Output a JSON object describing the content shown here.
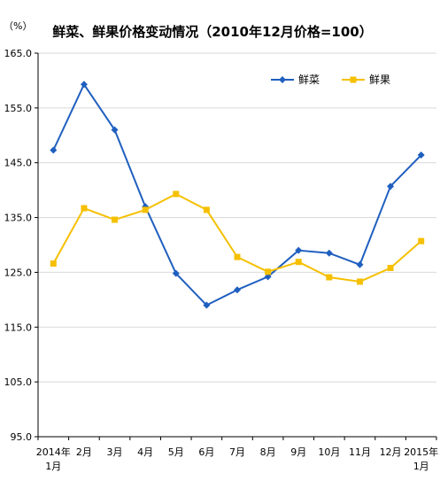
{
  "chart_data": {
    "type": "line",
    "title": "鲜菜、鲜果价格变动情况（2010年12月价格=100）",
    "unit_label": "（%）",
    "categories": [
      [
        "2014年",
        "1月"
      ],
      [
        "2月"
      ],
      [
        "3月"
      ],
      [
        "4月"
      ],
      [
        "5月"
      ],
      [
        "6月"
      ],
      [
        "7月"
      ],
      [
        "8月"
      ],
      [
        "9月"
      ],
      [
        "10月"
      ],
      [
        "11月"
      ],
      [
        "12月"
      ],
      [
        "2015年",
        "1月"
      ]
    ],
    "series": [
      {
        "name": "鲜菜",
        "color": "#1f5fbf",
        "marker": "diamond",
        "values": [
          147.3,
          159.3,
          151.0,
          137.0,
          124.8,
          119.0,
          121.8,
          124.2,
          129.0,
          128.5,
          126.4,
          140.7,
          146.4
        ]
      },
      {
        "name": "鲜果",
        "color": "#f5c000",
        "marker": "square",
        "values": [
          126.6,
          136.7,
          134.6,
          136.4,
          139.3,
          136.4,
          127.8,
          125.1,
          126.9,
          124.1,
          123.3,
          125.8,
          130.7
        ]
      }
    ],
    "y_ticks": [
      "95.0",
      "105.0",
      "115.0",
      "125.0",
      "135.0",
      "145.0",
      "155.0",
      "165.0"
    ],
    "ylim": [
      95,
      165
    ],
    "grid": true,
    "legend_position": "top-right"
  }
}
